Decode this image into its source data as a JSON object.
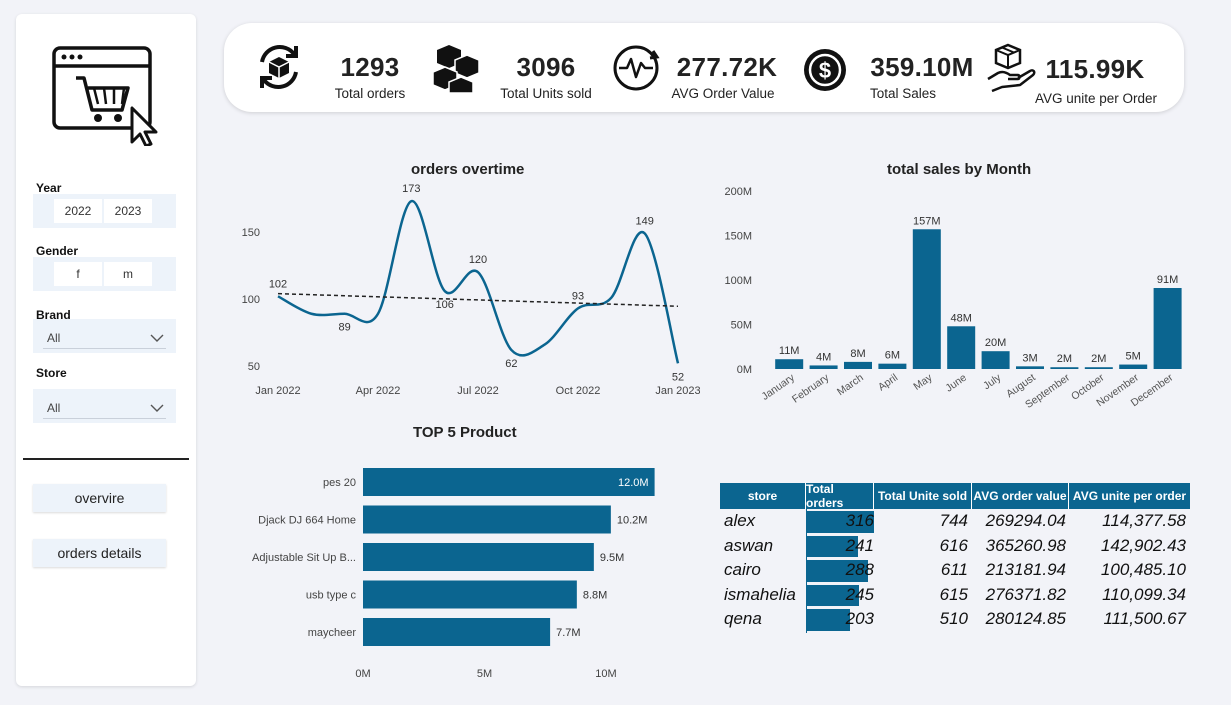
{
  "sidebar": {
    "filters": {
      "year": {
        "label": "Year",
        "options": [
          "2022",
          "2023"
        ]
      },
      "gender": {
        "label": "Gender",
        "options": [
          "f",
          "m"
        ]
      },
      "brand": {
        "label": "Brand",
        "value": "All"
      },
      "store": {
        "label": "Store",
        "value": "All"
      }
    },
    "nav": {
      "overview_label": "overvire",
      "orders_details_label": "orders details"
    }
  },
  "kpis": [
    {
      "value": "1293",
      "label": "Total orders",
      "icon": "box-cycle-icon"
    },
    {
      "value": "3096",
      "label": "Total Units sold",
      "icon": "boxes-icon"
    },
    {
      "value": "277.72K",
      "label": "AVG Order Value",
      "icon": "pulse-cycle-icon"
    },
    {
      "value": "359.10M",
      "label": "Total Sales",
      "icon": "dollar-coin-icon"
    },
    {
      "value": "115.99K",
      "label": "AVG unite per Order",
      "icon": "box-hand-icon"
    }
  ],
  "orders_chart": {
    "title": "orders overtime",
    "chart_data": {
      "type": "line",
      "x": [
        "Jan 2022",
        "Feb 2022",
        "Mar 2022",
        "Apr 2022",
        "May 2022",
        "Jun 2022",
        "Jul 2022",
        "Aug 2022",
        "Sep 2022",
        "Oct 2022",
        "Nov 2022",
        "Dec 2022",
        "Jan 2023"
      ],
      "x_ticks": [
        "Jan 2022",
        "Apr 2022",
        "Jul 2022",
        "Oct 2022",
        "Jan 2023"
      ],
      "values": [
        102,
        89,
        89,
        89,
        173,
        106,
        120,
        62,
        66,
        93,
        101,
        149,
        52
      ],
      "labeled_points": [
        {
          "index": 0,
          "label": "102"
        },
        {
          "index": 2,
          "label": "89"
        },
        {
          "index": 4,
          "label": "173"
        },
        {
          "index": 5,
          "label": "106"
        },
        {
          "index": 6,
          "label": "120"
        },
        {
          "index": 7,
          "label": "62"
        },
        {
          "index": 9,
          "label": "93"
        },
        {
          "index": 11,
          "label": "149"
        },
        {
          "index": 12,
          "label": "52"
        }
      ],
      "y_ticks": [
        "50",
        "100",
        "150"
      ],
      "ylim": [
        50,
        150
      ],
      "trend": [
        104,
        94.6
      ],
      "line_color": "#0b6590"
    }
  },
  "sales_chart": {
    "title": "total sales by Month",
    "chart_data": {
      "type": "bar",
      "categories": [
        "January",
        "February",
        "March",
        "April",
        "May",
        "June",
        "July",
        "August",
        "September",
        "October",
        "November",
        "December"
      ],
      "values": [
        11,
        4,
        8,
        6,
        157,
        48,
        20,
        3,
        2,
        2,
        5,
        91
      ],
      "value_labels": [
        "11M",
        "4M",
        "8M",
        "6M",
        "157M",
        "48M",
        "20M",
        "3M",
        "2M",
        "2M",
        "5M",
        "91M"
      ],
      "y_ticks": [
        "0M",
        "50M",
        "100M",
        "150M",
        "200M"
      ],
      "ylim": [
        0,
        200
      ],
      "bar_color": "#0b6590"
    }
  },
  "top_products": {
    "title": "TOP 5 Product",
    "chart_data": {
      "type": "bar",
      "orientation": "horizontal",
      "categories": [
        "pes 20",
        "Djack DJ 664 Home",
        "Adjustable Sit Up B...",
        "usb type c",
        "maycheer"
      ],
      "values": [
        12.0,
        10.2,
        9.5,
        8.8,
        7.7
      ],
      "value_labels": [
        "12.0M",
        "10.2M",
        "9.5M",
        "8.8M",
        "7.7M"
      ],
      "x_ticks": [
        "0M",
        "5M",
        "10M"
      ],
      "xlim": [
        0,
        10
      ],
      "bar_color": "#0b6590"
    }
  },
  "store_table": {
    "columns": [
      "store",
      "Total orders",
      "Total Unite sold",
      "AVG order value",
      "AVG unite per order"
    ],
    "rows": [
      {
        "store": "alex",
        "orders": "316",
        "orders_value": 316,
        "units": "744",
        "avg_order": "269294.04",
        "avg_units": "114,377.58"
      },
      {
        "store": "aswan",
        "orders": "241",
        "orders_value": 241,
        "units": "616",
        "avg_order": "365260.98",
        "avg_units": "142,902.43"
      },
      {
        "store": "cairo",
        "orders": "288",
        "orders_value": 288,
        "units": "611",
        "avg_order": "213181.94",
        "avg_units": "100,485.10"
      },
      {
        "store": "ismahelia",
        "orders": "245",
        "orders_value": 245,
        "units": "615",
        "avg_order": "276371.82",
        "avg_units": "110,099.34"
      },
      {
        "store": "qena",
        "orders": "203",
        "orders_value": 203,
        "units": "510",
        "avg_order": "280124.85",
        "avg_units": "111,500.67"
      }
    ]
  }
}
